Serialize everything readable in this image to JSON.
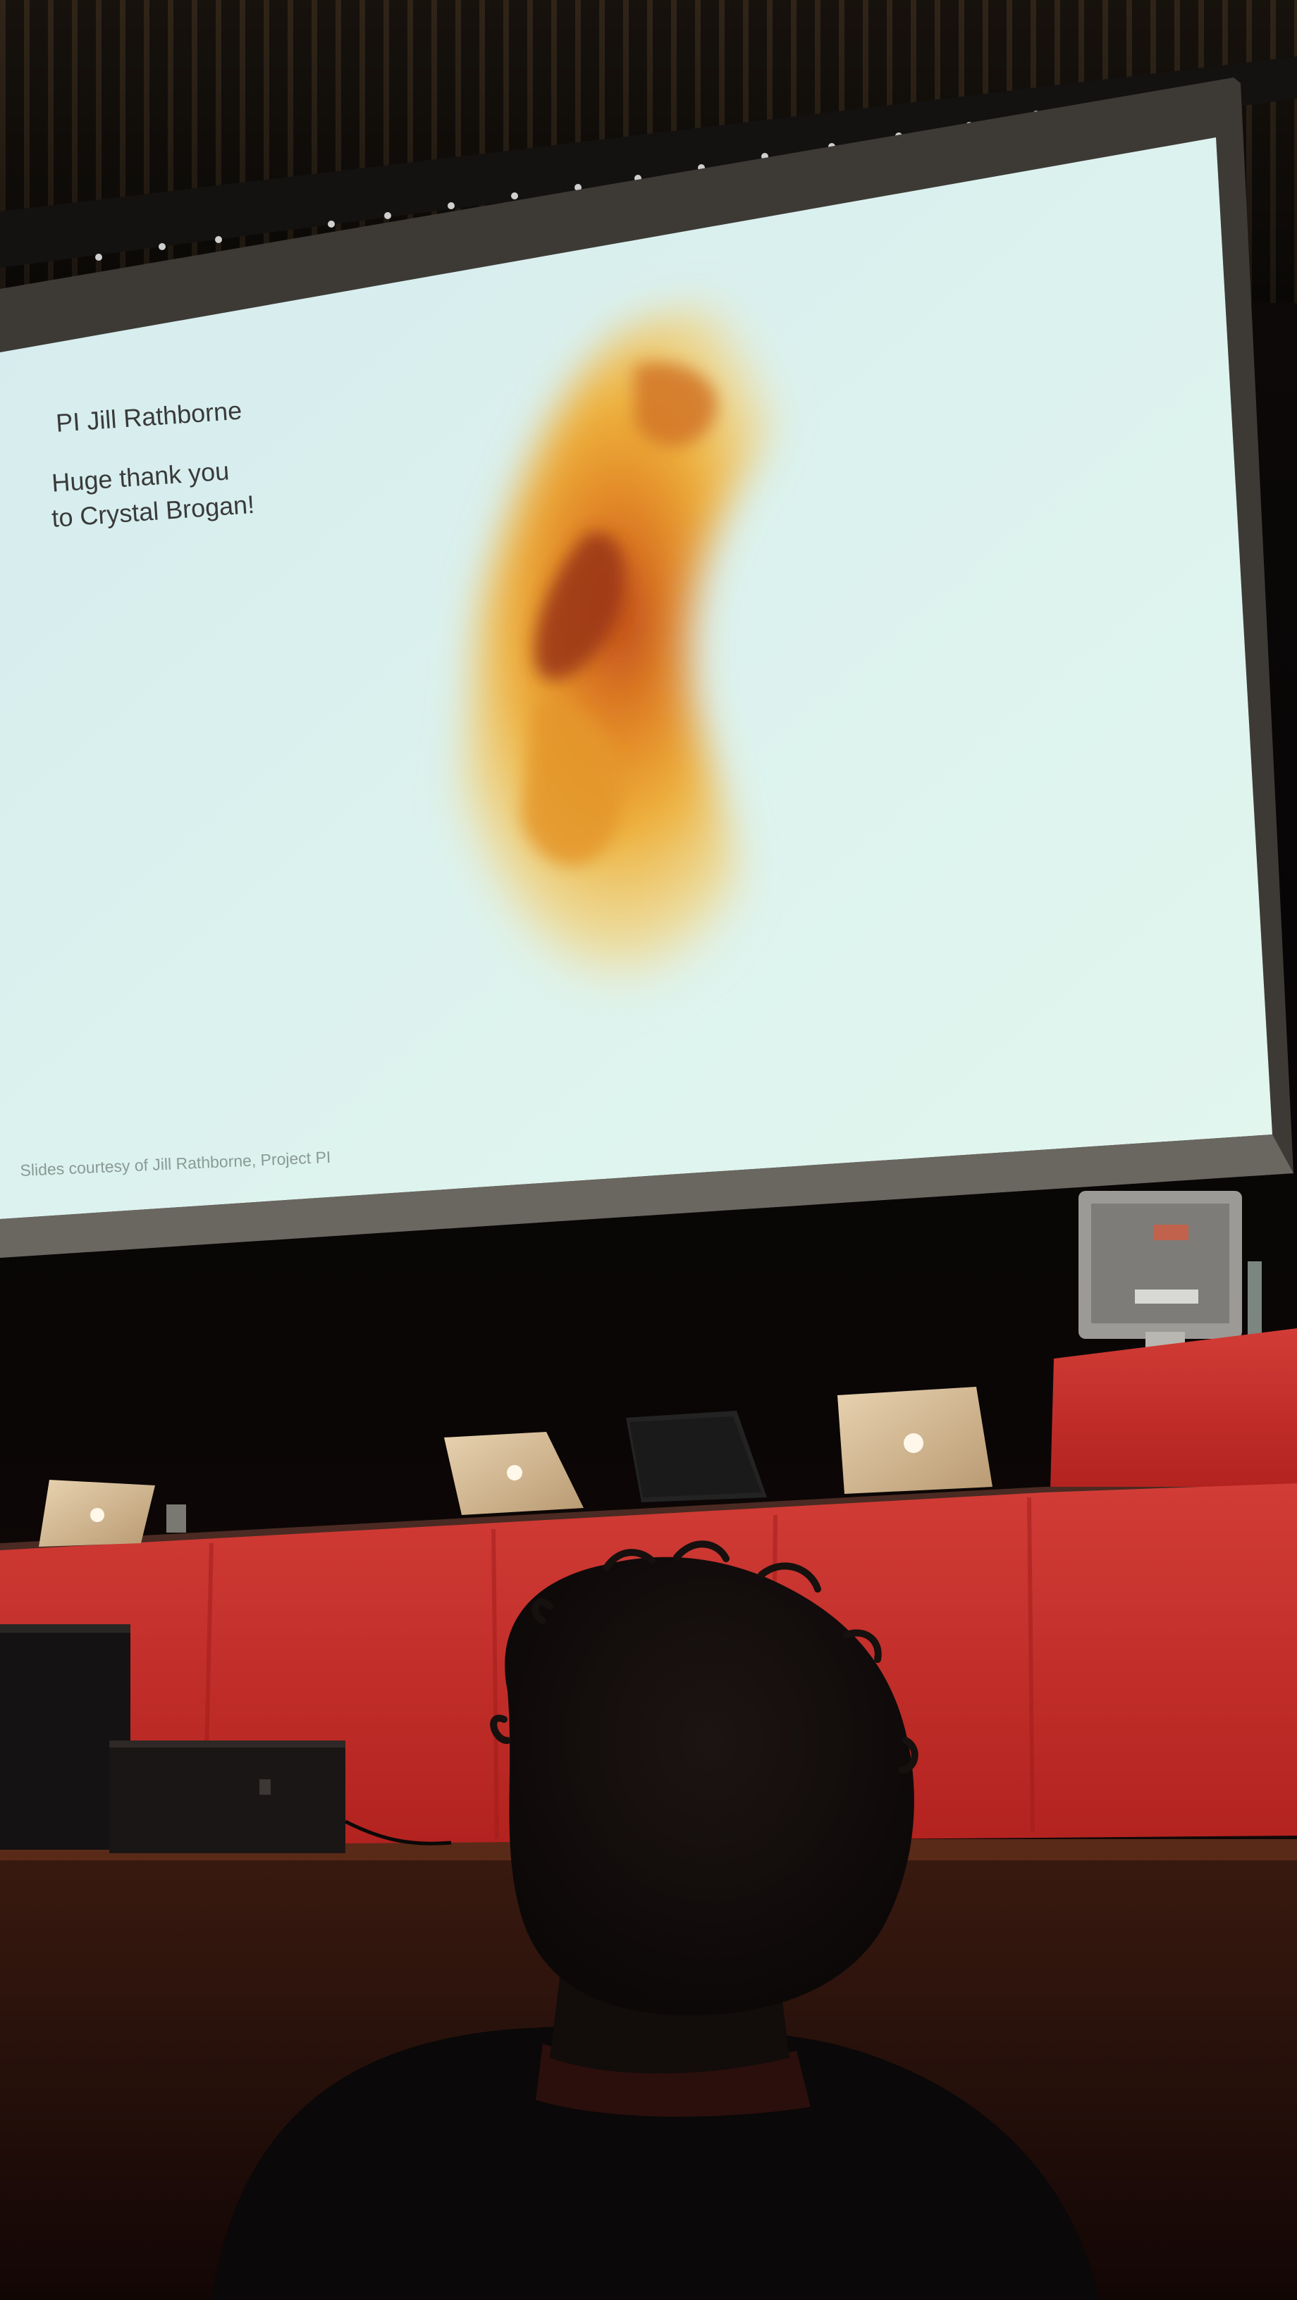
{
  "slide": {
    "line1": "PI Jill Rathborne",
    "line2": "Huge thank you",
    "line3": "to Crystal Brogan!",
    "credit": "Slides courtesy of Jill Rathborne, Project PI"
  },
  "colors": {
    "screen": "#dff3ee",
    "nebula": "#e8a22a",
    "table_cloth": "#c22a2a",
    "background": "#0b0707"
  },
  "objects": {
    "laptops": [
      "apple-laptop",
      "apple-laptop",
      "black-laptop",
      "apple-laptop"
    ],
    "monitor": "monitor-back",
    "speakers": [
      "stage-speaker",
      "stage-speaker"
    ]
  }
}
